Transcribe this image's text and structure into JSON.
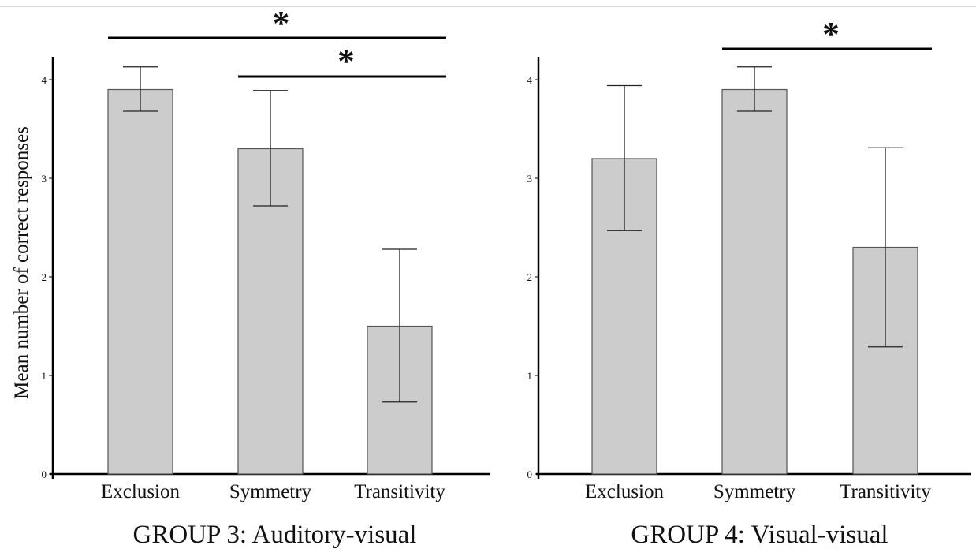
{
  "y_axis_label": "Mean number of correct responses",
  "chart_data": [
    {
      "type": "bar",
      "title": "GROUP 3: Auditory-visual",
      "categories": [
        "Exclusion",
        "Symmetry",
        "Transitivity"
      ],
      "values": [
        3.9,
        3.3,
        1.5
      ],
      "error_low": [
        3.68,
        2.72,
        0.73
      ],
      "error_high": [
        4.13,
        3.89,
        2.28
      ],
      "ylabel": "Mean number of correct responses",
      "xlabel": "",
      "ylim": [
        0,
        4.25
      ],
      "yticks": [
        "0",
        "1",
        "2",
        "3",
        "4"
      ],
      "bar_color": "#cccccc",
      "significance": [
        {
          "from": "Exclusion",
          "to": "Transitivity",
          "label": "*"
        },
        {
          "from": "Symmetry",
          "to": "Transitivity",
          "label": "*"
        }
      ]
    },
    {
      "type": "bar",
      "title": "GROUP 4: Visual-visual",
      "categories": [
        "Exclusion",
        "Symmetry",
        "Transitivity"
      ],
      "values": [
        3.2,
        3.9,
        2.3
      ],
      "error_low": [
        2.47,
        3.68,
        1.29
      ],
      "error_high": [
        3.94,
        4.13,
        3.31
      ],
      "ylabel": "",
      "xlabel": "",
      "ylim": [
        0,
        4.25
      ],
      "yticks": [
        "0",
        "1",
        "2",
        "3",
        "4"
      ],
      "bar_color": "#cccccc",
      "significance": [
        {
          "from": "Symmetry",
          "to": "Transitivity",
          "label": "*"
        }
      ]
    }
  ]
}
